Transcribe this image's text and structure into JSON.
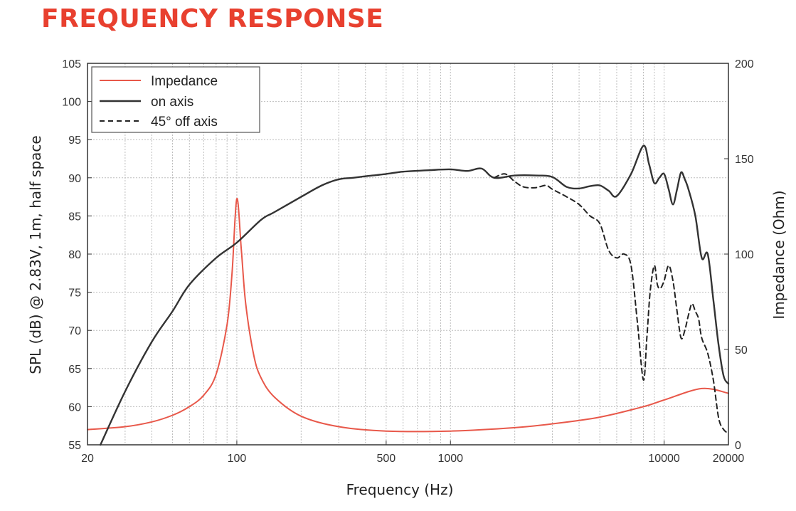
{
  "title": "FREQUENCY RESPONSE",
  "colors": {
    "title": "#e8402f",
    "impedance": "#e8584a",
    "on_axis": "#333333",
    "off_axis": "#222222"
  },
  "chart_data": {
    "type": "line",
    "title": "FREQUENCY RESPONSE",
    "xlabel": "Frequency (Hz)",
    "ylabel": "SPL (dB) @ 2.83V, 1m, half space",
    "y2label": "Impedance (Ohm)",
    "xscale": "log",
    "xlim": [
      20,
      20000
    ],
    "ylim": [
      55,
      105
    ],
    "y2lim": [
      0,
      200
    ],
    "xticks": [
      20,
      100,
      500,
      1000,
      10000,
      20000
    ],
    "xtick_labels": [
      "20",
      "100",
      "500",
      "1000",
      "10000",
      "20000"
    ],
    "yticks": [
      55,
      60,
      65,
      70,
      75,
      80,
      85,
      90,
      95,
      100,
      105
    ],
    "ytick_labels": [
      "55",
      "60",
      "65",
      "70",
      "75",
      "80",
      "85",
      "90",
      "95",
      "100",
      "105"
    ],
    "y2ticks": [
      0,
      50,
      100,
      150,
      200
    ],
    "y2tick_labels": [
      "0",
      "50",
      "100",
      "150",
      "200"
    ],
    "grid": true,
    "legend_position": "top-left",
    "series": [
      {
        "name": "Impedance",
        "axis": "right",
        "style": "solid",
        "x": [
          20,
          30,
          40,
          50,
          60,
          70,
          80,
          90,
          95,
          100,
          105,
          110,
          120,
          130,
          150,
          200,
          300,
          500,
          1000,
          2000,
          3000,
          5000,
          8000,
          10000,
          15000,
          20000
        ],
        "y": [
          8,
          9.5,
          12,
          15.5,
          20,
          26,
          37,
          63,
          90,
          129,
          102,
          74,
          47,
          35,
          25,
          15,
          9.5,
          7.2,
          7.2,
          9,
          11,
          14.5,
          20,
          23.5,
          29.5,
          27
        ]
      },
      {
        "name": "on axis",
        "axis": "left",
        "style": "solid",
        "x": [
          23,
          30,
          40,
          50,
          60,
          80,
          100,
          130,
          150,
          200,
          250,
          300,
          350,
          400,
          500,
          600,
          800,
          1000,
          1200,
          1400,
          1600,
          2000,
          2500,
          3000,
          3500,
          4000,
          4500,
          5000,
          5500,
          6000,
          7000,
          8000,
          8500,
          9000,
          9500,
          10000,
          10500,
          11000,
          11500,
          12000,
          12500,
          13000,
          14000,
          15000,
          16000,
          17000,
          18000,
          19000,
          20000
        ],
        "y": [
          55,
          62,
          68.5,
          72.5,
          76,
          79.5,
          81.5,
          84.5,
          85.5,
          87.5,
          89,
          89.8,
          90,
          90.2,
          90.5,
          90.8,
          91,
          91.1,
          90.9,
          91.2,
          90,
          90.3,
          90.3,
          90.1,
          88.8,
          88.6,
          88.9,
          89,
          88.3,
          87.6,
          90.5,
          94.2,
          91.8,
          89.3,
          90,
          90.5,
          88.5,
          86.5,
          88.5,
          90.7,
          89.8,
          88.5,
          85,
          79.5,
          80,
          74,
          68,
          64,
          63
        ]
      },
      {
        "name": "45° off axis",
        "axis": "left",
        "style": "dashed",
        "x": [
          1600,
          1800,
          2000,
          2200,
          2500,
          2800,
          3000,
          3500,
          4000,
          4500,
          5000,
          5500,
          6000,
          6500,
          7000,
          7500,
          8000,
          8300,
          8600,
          9000,
          9300,
          9600,
          10000,
          10500,
          11000,
          11500,
          12000,
          12500,
          13000,
          13500,
          14000,
          14500,
          15000,
          16000,
          17000,
          18000,
          19000,
          20000
        ],
        "y": [
          90,
          90.5,
          89.5,
          88.8,
          88.7,
          89,
          88.5,
          87.5,
          86.5,
          85,
          84,
          80.5,
          79.5,
          80,
          78.5,
          71,
          63.5,
          69,
          75,
          78.5,
          76,
          75.5,
          76.5,
          78.5,
          76.5,
          72.5,
          69,
          70,
          72,
          73.5,
          72.5,
          71.5,
          69,
          67,
          63.5,
          58.5,
          57,
          56.5
        ]
      }
    ]
  }
}
